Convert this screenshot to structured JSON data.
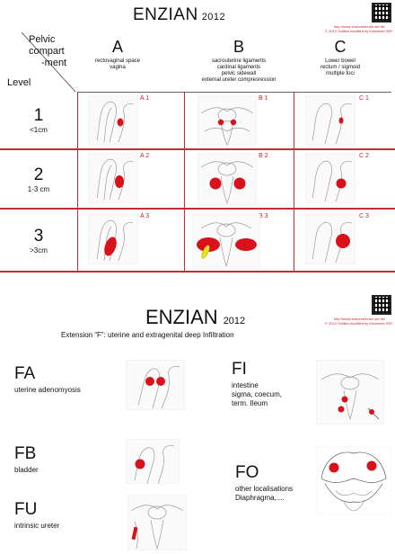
{
  "top": {
    "title": "ENZIAN",
    "year": "2012",
    "url_lines": [
      "http://www.endometriose-sef.de/",
      "© 2013 Tuttlies modified by Keckstein SEF"
    ]
  },
  "table": {
    "corner_top": [
      "Pelvic",
      "compart",
      "-ment"
    ],
    "corner_bottom": "Level",
    "columns": [
      {
        "letter": "A",
        "desc": [
          "rectovaginal space",
          "vagina"
        ]
      },
      {
        "letter": "B",
        "desc": [
          "sacrouterine ligaments",
          "cardinal ligaments",
          "pelvic sidewall",
          "external ureter compresression"
        ]
      },
      {
        "letter": "C",
        "desc": [
          "Lower bowel",
          "rectum / sigmoid",
          "multiple foci"
        ]
      }
    ],
    "rows": [
      {
        "num": "1",
        "size": "<1cm",
        "codes": [
          "A 1",
          "B 1",
          "C 1"
        ]
      },
      {
        "num": "2",
        "size": "1-3 cm",
        "codes": [
          "A 2",
          "B 2",
          "C 2"
        ]
      },
      {
        "num": "3",
        "size": ">3cm",
        "codes": [
          "A 3",
          "B 3",
          "C 3"
        ]
      }
    ]
  },
  "bottom": {
    "title": "ENZIAN",
    "year": "2012",
    "url_lines": [
      "http://www.endometriose-sef.de/",
      "© 2013 Tuttlies modified by Keckstein SEF"
    ],
    "extension": "Extension “F”: uterine and extragenital deep Infiltration",
    "items": {
      "FA": {
        "code": "FA",
        "desc": [
          "uterine adenomyosis"
        ]
      },
      "FI": {
        "code": "FI",
        "desc": [
          "intestine",
          "sigma, coecum,",
          "term. Ileum"
        ]
      },
      "FB": {
        "code": "FB",
        "desc": [
          "bladder"
        ]
      },
      "FO": {
        "code": "FO",
        "desc": [
          "other localisations",
          "Diaphragma,...."
        ]
      },
      "FU": {
        "code": "FU",
        "desc": [
          "intrinsic ureter"
        ]
      }
    }
  },
  "colors": {
    "lesion": "#d9111b",
    "grid_line": "#c62b32",
    "code_text": "#d11f26",
    "yellow": "#e8df1d"
  }
}
